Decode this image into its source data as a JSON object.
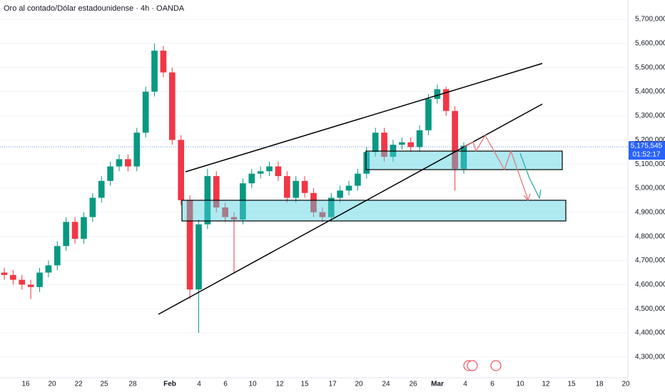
{
  "chart_data": {
    "type": "candlestick",
    "title": "Oro al contado/Dólar estadounidense · 4h · OANDA",
    "xticks": [
      "16",
      "20",
      "22",
      "25",
      "28",
      "Feb",
      "4",
      "6",
      "10",
      "12",
      "15",
      "17",
      "20",
      "24",
      "26",
      "Mar",
      "4",
      "6",
      "10",
      "12",
      "15",
      "18",
      "20"
    ],
    "ylim": [
      4214000,
      5780000
    ],
    "yticks": [
      {
        "value": 4300000,
        "label": "4,300,000"
      },
      {
        "value": 4400000,
        "label": "4,400,000"
      },
      {
        "value": 4500000,
        "label": "4,500,000"
      },
      {
        "value": 4600000,
        "label": "4,600,000"
      },
      {
        "value": 4700000,
        "label": "4,700,000"
      },
      {
        "value": 4800000,
        "label": "4,800,000"
      },
      {
        "value": 4900000,
        "label": "4,900,000"
      },
      {
        "value": 5000000,
        "label": "5,000,000"
      },
      {
        "value": 5100000,
        "label": "5,100,000"
      },
      {
        "value": 5200000,
        "label": "5,200,000"
      },
      {
        "value": 5300000,
        "label": "5,300,000"
      },
      {
        "value": 5400000,
        "label": "5,400,000"
      },
      {
        "value": 5500000,
        "label": "5,500,000"
      },
      {
        "value": 5600000,
        "label": "5,600,000"
      },
      {
        "value": 5700000,
        "label": "5,700,000"
      }
    ],
    "up_color": "#089981",
    "down_color": "#f23645",
    "open": [
      4650000,
      4640000,
      4620000,
      4600000,
      4590000,
      4650000,
      4680000,
      4760000,
      4860000,
      4790000,
      4880000,
      4960000,
      5030000,
      5090000,
      5120000,
      5090000,
      5230000,
      5400000,
      5570000,
      5480000,
      5200000,
      4950000,
      4580000,
      4850000,
      5050000,
      4920000,
      4880000,
      4870000,
      5020000,
      5060000,
      5070000,
      5090000,
      5050000,
      4960000,
      5030000,
      4980000,
      4900000,
      4880000,
      4960000,
      4990000,
      5010000,
      5060000,
      5150000,
      5230000,
      5130000,
      5180000,
      5190000,
      5170000,
      5240000,
      5370000,
      5410000,
      5320000,
      5080000
    ],
    "high": [
      4670000,
      4660000,
      4640000,
      4620000,
      4670000,
      4700000,
      4780000,
      4880000,
      4880000,
      4900000,
      4980000,
      5050000,
      5110000,
      5140000,
      5140000,
      5250000,
      5420000,
      5600000,
      5590000,
      5500000,
      5220000,
      4970000,
      4870000,
      5080000,
      5070000,
      4940000,
      4900000,
      5040000,
      5080000,
      5090000,
      5110000,
      5110000,
      5070000,
      5050000,
      5050000,
      5000000,
      4920000,
      4980000,
      5010000,
      5030000,
      5080000,
      5170000,
      5250000,
      5250000,
      5200000,
      5210000,
      5210000,
      5260000,
      5390000,
      5430000,
      5420000,
      5340000,
      5190000
    ],
    "low": [
      4620000,
      4600000,
      4580000,
      4540000,
      4570000,
      4630000,
      4660000,
      4740000,
      4770000,
      4770000,
      4860000,
      4940000,
      5010000,
      5070000,
      5070000,
      5070000,
      5210000,
      5380000,
      5460000,
      5180000,
      4930000,
      4540000,
      4400000,
      4830000,
      4900000,
      4860000,
      4650000,
      4850000,
      5000000,
      5040000,
      5050000,
      5030000,
      4940000,
      4940000,
      4960000,
      4880000,
      4860000,
      4860000,
      4940000,
      4970000,
      4990000,
      5040000,
      5130000,
      5110000,
      5110000,
      5160000,
      5150000,
      5150000,
      5220000,
      5350000,
      5300000,
      4990000,
      5060000
    ],
    "close": [
      4640000,
      4620000,
      4600000,
      4590000,
      4650000,
      4680000,
      4760000,
      4860000,
      4790000,
      4880000,
      4960000,
      5030000,
      5090000,
      5120000,
      5090000,
      5230000,
      5400000,
      5570000,
      5480000,
      5200000,
      4950000,
      4580000,
      4850000,
      5050000,
      4920000,
      4880000,
      4870000,
      5020000,
      5060000,
      5070000,
      5090000,
      5050000,
      4960000,
      5030000,
      4980000,
      4900000,
      4880000,
      4960000,
      4990000,
      5010000,
      5060000,
      5150000,
      5230000,
      5130000,
      5180000,
      5190000,
      5170000,
      5240000,
      5370000,
      5410000,
      5320000,
      5080000,
      5175545
    ],
    "last_price": {
      "value": 5175545,
      "label": "5,175,545"
    },
    "countdown": "01:52:17"
  }
}
